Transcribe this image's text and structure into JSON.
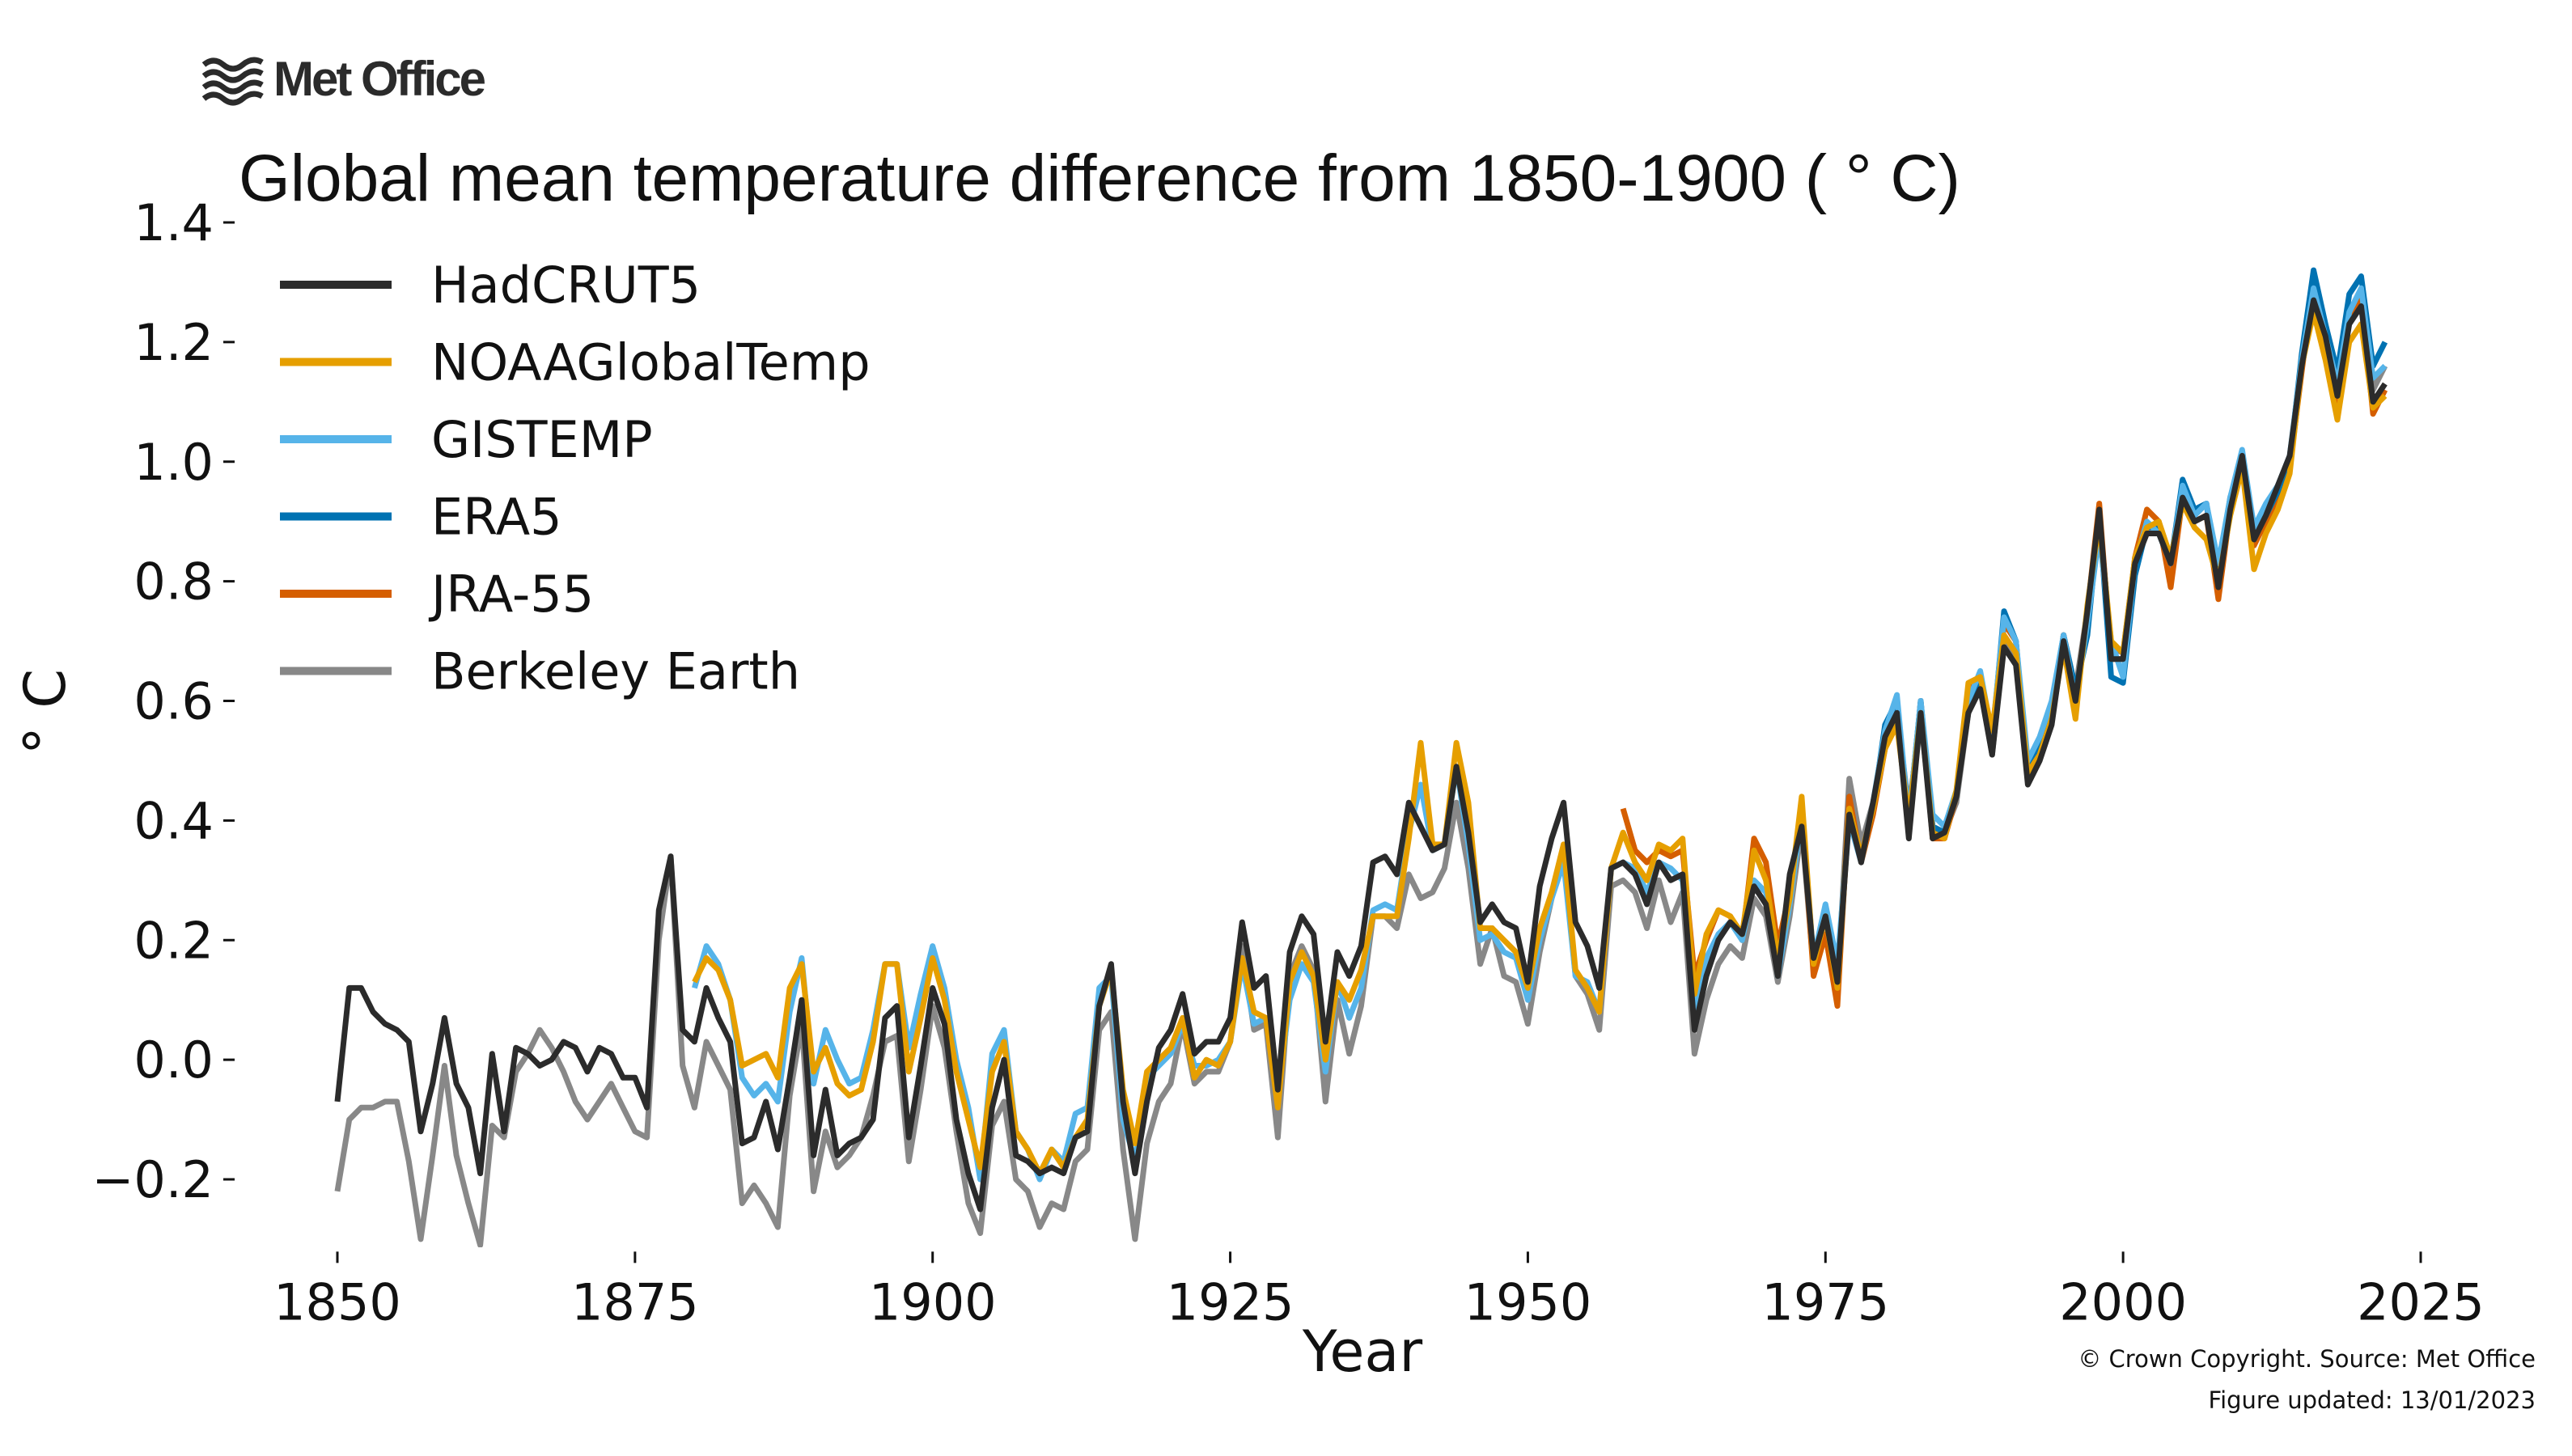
{
  "logo": {
    "text": "Met Office",
    "icon": "met-office-waves-icon"
  },
  "footer": {
    "copyright": "© Crown Copyright. Source: Met Office",
    "updated": "Figure updated: 13/01/2023"
  },
  "chart_data": {
    "type": "line",
    "title": "Global mean temperature difference from 1850-1900 ( ° C)",
    "xlabel": "Year",
    "ylabel": "° C",
    "xlim": [
      1844,
      2027
    ],
    "ylim": [
      -0.31,
      1.42
    ],
    "xticks": [
      1850,
      1875,
      1900,
      1925,
      1950,
      1975,
      2000,
      2025
    ],
    "xtick_labels": [
      "1850",
      "1875",
      "1900",
      "1925",
      "1950",
      "1975",
      "2000",
      "2025"
    ],
    "yticks": [
      -0.2,
      0.0,
      0.2,
      0.4,
      0.6,
      0.8,
      1.0,
      1.2,
      1.4
    ],
    "ytick_labels": [
      "−0.2",
      "0.0",
      "0.2",
      "0.4",
      "0.6",
      "0.8",
      "1.0",
      "1.2",
      "1.4"
    ],
    "grid": false,
    "legend_placement": "top-left",
    "series": [
      {
        "name": "HadCRUT5",
        "color": "#2b2b2b",
        "start_year": 1850,
        "values": [
          -0.07,
          0.12,
          0.12,
          0.08,
          0.06,
          0.05,
          0.03,
          -0.12,
          -0.04,
          0.07,
          -0.04,
          -0.08,
          -0.19,
          0.01,
          -0.12,
          0.02,
          0.01,
          -0.01,
          0.0,
          0.03,
          0.02,
          -0.02,
          0.02,
          0.01,
          -0.03,
          -0.03,
          -0.08,
          0.25,
          0.34,
          0.05,
          0.03,
          0.12,
          0.07,
          0.03,
          -0.14,
          -0.13,
          -0.07,
          -0.15,
          -0.03,
          0.1,
          -0.16,
          -0.05,
          -0.16,
          -0.14,
          -0.13,
          -0.1,
          0.07,
          0.09,
          -0.13,
          -0.01,
          0.12,
          0.06,
          -0.1,
          -0.19,
          -0.25,
          -0.08,
          0.0,
          -0.16,
          -0.17,
          -0.19,
          -0.18,
          -0.19,
          -0.13,
          -0.12,
          0.09,
          0.16,
          -0.07,
          -0.19,
          -0.07,
          0.02,
          0.05,
          0.11,
          0.01,
          0.03,
          0.03,
          0.07,
          0.23,
          0.12,
          0.14,
          -0.05,
          0.18,
          0.24,
          0.21,
          0.03,
          0.18,
          0.14,
          0.19,
          0.33,
          0.34,
          0.31,
          0.43,
          0.39,
          0.35,
          0.36,
          0.49,
          0.38,
          0.23,
          0.26,
          0.23,
          0.22,
          0.13,
          0.29,
          0.37,
          0.43,
          0.23,
          0.19,
          0.12,
          0.32,
          0.33,
          0.31,
          0.26,
          0.33,
          0.3,
          0.31,
          0.05,
          0.14,
          0.2,
          0.23,
          0.21,
          0.29,
          0.26,
          0.14,
          0.31,
          0.39,
          0.17,
          0.24,
          0.13,
          0.41,
          0.33,
          0.43,
          0.54,
          0.58,
          0.37,
          0.58,
          0.37,
          0.38,
          0.44,
          0.58,
          0.62,
          0.51,
          0.69,
          0.66,
          0.46,
          0.5,
          0.56,
          0.7,
          0.6,
          0.75,
          0.92,
          0.67,
          0.67,
          0.83,
          0.88,
          0.88,
          0.83,
          0.94,
          0.9,
          0.91,
          0.79,
          0.92,
          1.01,
          0.87,
          0.91,
          0.96,
          1.01,
          1.16,
          1.27,
          1.21,
          1.11,
          1.23,
          1.26,
          1.1,
          1.13
        ]
      },
      {
        "name": "NOAAGlobalTemp",
        "color": "#e69f00",
        "start_year": 1880,
        "values": [
          0.13,
          0.17,
          0.15,
          0.1,
          -0.01,
          0.0,
          0.01,
          -0.03,
          0.12,
          0.16,
          -0.02,
          0.02,
          -0.04,
          -0.06,
          -0.05,
          0.03,
          0.16,
          0.16,
          -0.02,
          0.07,
          0.17,
          0.1,
          -0.02,
          -0.1,
          -0.18,
          -0.02,
          0.03,
          -0.12,
          -0.15,
          -0.19,
          -0.15,
          -0.18,
          -0.13,
          -0.1,
          0.09,
          0.15,
          -0.05,
          -0.14,
          -0.02,
          0.0,
          0.02,
          0.07,
          -0.03,
          0.0,
          -0.01,
          0.03,
          0.17,
          0.08,
          0.07,
          -0.08,
          0.13,
          0.18,
          0.14,
          0.0,
          0.13,
          0.1,
          0.15,
          0.24,
          0.24,
          0.24,
          0.37,
          0.53,
          0.36,
          0.36,
          0.53,
          0.43,
          0.22,
          0.22,
          0.2,
          0.18,
          0.12,
          0.22,
          0.28,
          0.36,
          0.15,
          0.12,
          0.08,
          0.32,
          0.38,
          0.33,
          0.3,
          0.36,
          0.35,
          0.37,
          0.11,
          0.21,
          0.25,
          0.24,
          0.21,
          0.35,
          0.3,
          0.17,
          0.27,
          0.44,
          0.16,
          0.24,
          0.12,
          0.42,
          0.34,
          0.42,
          0.52,
          0.56,
          0.4,
          0.58,
          0.38,
          0.37,
          0.45,
          0.63,
          0.64,
          0.55,
          0.71,
          0.68,
          0.48,
          0.51,
          0.57,
          0.69,
          0.57,
          0.76,
          0.9,
          0.7,
          0.68,
          0.84,
          0.89,
          0.9,
          0.84,
          0.93,
          0.89,
          0.87,
          0.8,
          0.91,
          0.99,
          0.82,
          0.88,
          0.92,
          0.98,
          1.16,
          1.25,
          1.17,
          1.07,
          1.2,
          1.23,
          1.09,
          1.11
        ]
      },
      {
        "name": "GISTEMP",
        "color": "#56b4e9",
        "start_year": 1880,
        "values": [
          0.12,
          0.19,
          0.16,
          0.1,
          -0.03,
          -0.06,
          -0.04,
          -0.07,
          0.08,
          0.17,
          -0.04,
          0.05,
          0.0,
          -0.04,
          -0.03,
          0.05,
          0.16,
          0.16,
          0.02,
          0.11,
          0.19,
          0.12,
          0.0,
          -0.08,
          -0.2,
          0.01,
          0.05,
          -0.12,
          -0.15,
          -0.2,
          -0.15,
          -0.17,
          -0.09,
          -0.08,
          0.12,
          0.14,
          -0.1,
          -0.17,
          -0.03,
          -0.01,
          0.01,
          0.06,
          -0.01,
          -0.01,
          0.0,
          0.03,
          0.16,
          0.06,
          0.07,
          -0.06,
          0.1,
          0.16,
          0.13,
          -0.02,
          0.13,
          0.07,
          0.12,
          0.25,
          0.26,
          0.25,
          0.38,
          0.46,
          0.35,
          0.36,
          0.49,
          0.36,
          0.2,
          0.21,
          0.18,
          0.17,
          0.1,
          0.2,
          0.27,
          0.33,
          0.14,
          0.13,
          0.08,
          0.32,
          0.33,
          0.32,
          0.28,
          0.33,
          0.32,
          0.3,
          0.08,
          0.17,
          0.21,
          0.23,
          0.2,
          0.3,
          0.28,
          0.14,
          0.26,
          0.41,
          0.17,
          0.26,
          0.16,
          0.4,
          0.33,
          0.43,
          0.55,
          0.61,
          0.4,
          0.6,
          0.41,
          0.39,
          0.45,
          0.6,
          0.65,
          0.54,
          0.74,
          0.7,
          0.5,
          0.54,
          0.6,
          0.71,
          0.6,
          0.73,
          0.88,
          0.7,
          0.64,
          0.83,
          0.9,
          0.88,
          0.83,
          0.96,
          0.91,
          0.93,
          0.83,
          0.94,
          1.02,
          0.89,
          0.93,
          0.96,
          1.01,
          1.17,
          1.29,
          1.21,
          1.13,
          1.25,
          1.29,
          1.14,
          1.16
        ]
      },
      {
        "name": "ERA5",
        "color": "#0072b2",
        "start_year": 1979,
        "values": [
          0.42,
          0.56,
          0.6,
          0.4,
          0.6,
          0.39,
          0.38,
          0.44,
          0.6,
          0.64,
          0.53,
          0.75,
          0.7,
          0.48,
          0.52,
          0.59,
          0.71,
          0.62,
          0.71,
          0.91,
          0.64,
          0.63,
          0.81,
          0.89,
          0.89,
          0.83,
          0.97,
          0.92,
          0.93,
          0.8,
          0.94,
          1.0,
          0.87,
          0.91,
          0.95,
          1.0,
          1.18,
          1.32,
          1.23,
          1.15,
          1.28,
          1.31,
          1.16,
          1.2
        ]
      },
      {
        "name": "JRA-55",
        "color": "#d55e00",
        "start_year": 1958,
        "values": [
          0.42,
          0.35,
          0.33,
          0.35,
          0.34,
          0.35,
          0.14,
          0.2,
          0.25,
          0.24,
          0.2,
          0.37,
          0.33,
          0.19,
          0.28,
          0.42,
          0.14,
          0.21,
          0.09,
          0.44,
          0.33,
          0.41,
          0.52,
          0.57,
          0.39,
          0.6,
          0.37,
          0.37,
          0.44,
          0.62,
          0.64,
          0.53,
          0.73,
          0.7,
          0.47,
          0.51,
          0.58,
          0.71,
          0.6,
          0.75,
          0.93,
          0.67,
          0.67,
          0.84,
          0.92,
          0.9,
          0.79,
          0.94,
          0.9,
          0.91,
          0.77,
          0.92,
          1.0,
          0.86,
          0.9,
          0.94,
          0.99,
          1.15,
          1.3,
          1.2,
          1.1,
          1.24,
          1.27,
          1.08,
          1.12
        ]
      },
      {
        "name": "Berkeley Earth",
        "color": "#888888",
        "start_year": 1850,
        "values": [
          -0.22,
          -0.1,
          -0.08,
          -0.08,
          -0.07,
          -0.07,
          -0.17,
          -0.3,
          -0.16,
          -0.01,
          -0.16,
          -0.24,
          -0.31,
          -0.11,
          -0.13,
          -0.02,
          0.01,
          0.05,
          0.02,
          -0.02,
          -0.07,
          -0.1,
          -0.07,
          -0.04,
          -0.08,
          -0.12,
          -0.13,
          0.2,
          0.34,
          -0.01,
          -0.08,
          0.03,
          -0.01,
          -0.05,
          -0.24,
          -0.21,
          -0.24,
          -0.28,
          -0.06,
          0.06,
          -0.22,
          -0.12,
          -0.18,
          -0.16,
          -0.13,
          -0.06,
          0.03,
          0.04,
          -0.17,
          -0.05,
          0.09,
          0.02,
          -0.12,
          -0.24,
          -0.29,
          -0.11,
          -0.07,
          -0.2,
          -0.22,
          -0.28,
          -0.24,
          -0.25,
          -0.17,
          -0.15,
          0.05,
          0.08,
          -0.15,
          -0.3,
          -0.14,
          -0.07,
          -0.04,
          0.06,
          -0.04,
          -0.02,
          -0.02,
          0.03,
          0.19,
          0.05,
          0.06,
          -0.13,
          0.14,
          0.19,
          0.15,
          -0.07,
          0.1,
          0.01,
          0.09,
          0.24,
          0.24,
          0.22,
          0.31,
          0.27,
          0.28,
          0.32,
          0.43,
          0.32,
          0.16,
          0.22,
          0.14,
          0.13,
          0.06,
          0.18,
          0.27,
          0.35,
          0.14,
          0.11,
          0.05,
          0.29,
          0.3,
          0.28,
          0.22,
          0.3,
          0.23,
          0.28,
          0.01,
          0.1,
          0.16,
          0.19,
          0.17,
          0.27,
          0.24,
          0.13,
          0.24,
          0.39,
          0.15,
          0.21,
          0.12,
          0.47,
          0.36,
          0.43,
          0.52,
          0.58,
          0.42,
          0.57,
          0.39,
          0.38,
          0.43,
          0.58,
          0.63,
          0.51,
          0.7,
          0.67,
          0.48,
          0.51,
          0.58,
          0.71,
          0.62,
          0.75,
          0.91,
          0.69,
          0.68,
          0.84,
          0.89,
          0.89,
          0.82,
          0.94,
          0.91,
          0.93,
          0.82,
          0.94,
          1.01,
          0.89,
          0.92,
          0.96,
          1.0,
          1.16,
          1.27,
          1.22,
          1.12,
          1.25,
          1.28,
          1.12,
          1.16
        ]
      }
    ],
    "draw_order": [
      "Berkeley Earth",
      "JRA-55",
      "ERA5",
      "GISTEMP",
      "NOAAGlobalTemp",
      "HadCRUT5"
    ]
  }
}
